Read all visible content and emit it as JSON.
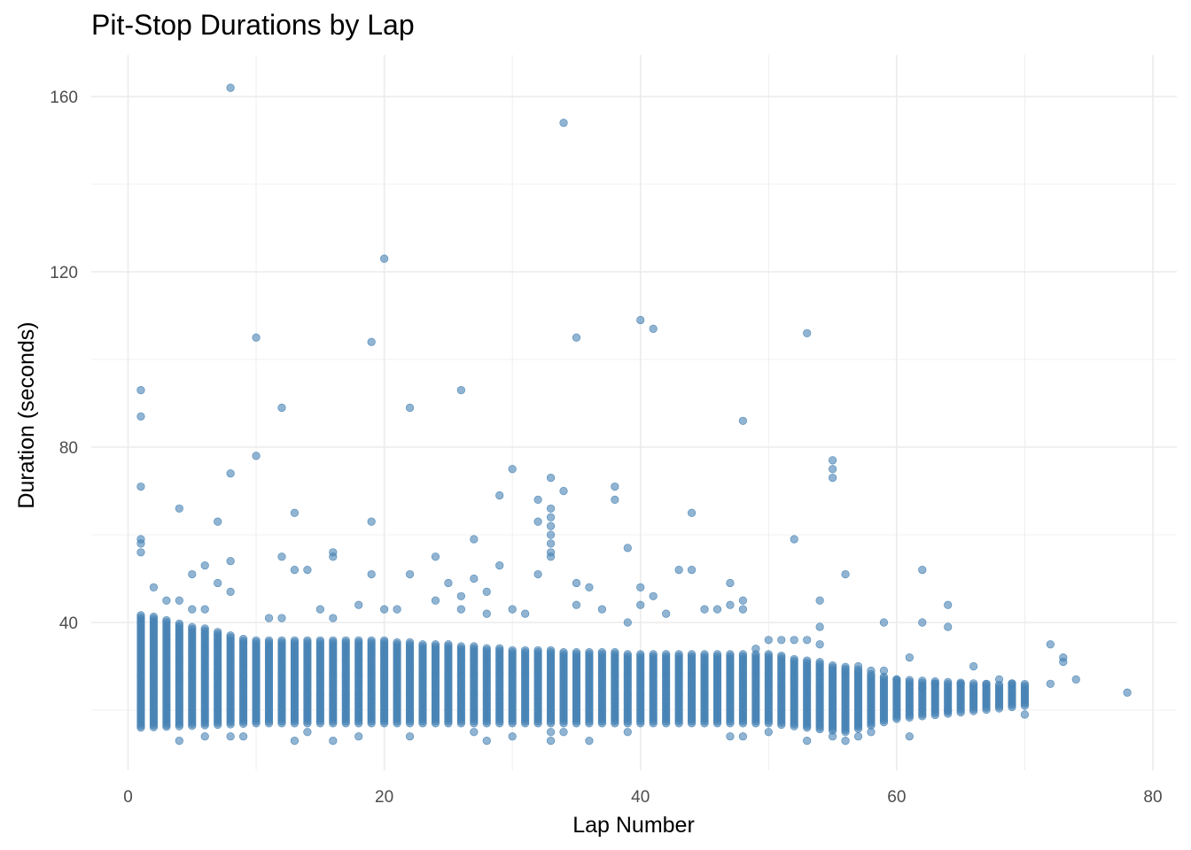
{
  "chart_data": {
    "type": "scatter",
    "title": "Pit-Stop Durations by Lap",
    "xlabel": "Lap Number",
    "ylabel": "Duration (seconds)",
    "xlim": [
      -3,
      81
    ],
    "ylim": [
      6,
      170
    ],
    "x_ticks": [
      0,
      20,
      40,
      60,
      80
    ],
    "y_ticks": [
      40,
      80,
      120,
      160
    ],
    "grid": true,
    "point_color": "#4682B4",
    "point_opacity": 0.6,
    "dense_band": {
      "description_free_range": true,
      "laps": [
        1,
        70
      ],
      "duration_range_by_lap": [
        {
          "lap": 1,
          "min": 16,
          "max": 42
        },
        {
          "lap": 10,
          "min": 17,
          "max": 36
        },
        {
          "lap": 20,
          "min": 17,
          "max": 36
        },
        {
          "lap": 30,
          "min": 17,
          "max": 34
        },
        {
          "lap": 40,
          "min": 17,
          "max": 33
        },
        {
          "lap": 50,
          "min": 17,
          "max": 33
        },
        {
          "lap": 56,
          "min": 15,
          "max": 30
        },
        {
          "lap": 60,
          "min": 18,
          "max": 27
        },
        {
          "lap": 70,
          "min": 21,
          "max": 26
        }
      ]
    },
    "points": [
      {
        "x": 8,
        "y": 162
      },
      {
        "x": 34,
        "y": 154
      },
      {
        "x": 20,
        "y": 123
      },
      {
        "x": 40,
        "y": 109
      },
      {
        "x": 41,
        "y": 107
      },
      {
        "x": 53,
        "y": 106
      },
      {
        "x": 10,
        "y": 105
      },
      {
        "x": 19,
        "y": 104
      },
      {
        "x": 35,
        "y": 105
      },
      {
        "x": 1,
        "y": 93
      },
      {
        "x": 26,
        "y": 93
      },
      {
        "x": 22,
        "y": 89
      },
      {
        "x": 12,
        "y": 89
      },
      {
        "x": 1,
        "y": 87
      },
      {
        "x": 48,
        "y": 86
      },
      {
        "x": 10,
        "y": 78
      },
      {
        "x": 55,
        "y": 77
      },
      {
        "x": 55,
        "y": 75
      },
      {
        "x": 55,
        "y": 73
      },
      {
        "x": 30,
        "y": 75
      },
      {
        "x": 8,
        "y": 74
      },
      {
        "x": 33,
        "y": 73
      },
      {
        "x": 38,
        "y": 71
      },
      {
        "x": 1,
        "y": 71
      },
      {
        "x": 34,
        "y": 70
      },
      {
        "x": 29,
        "y": 69
      },
      {
        "x": 32,
        "y": 68
      },
      {
        "x": 38,
        "y": 68
      },
      {
        "x": 4,
        "y": 66
      },
      {
        "x": 33,
        "y": 66
      },
      {
        "x": 33,
        "y": 64
      },
      {
        "x": 13,
        "y": 65
      },
      {
        "x": 44,
        "y": 65
      },
      {
        "x": 7,
        "y": 63
      },
      {
        "x": 19,
        "y": 63
      },
      {
        "x": 32,
        "y": 63
      },
      {
        "x": 33,
        "y": 62
      },
      {
        "x": 33,
        "y": 60
      },
      {
        "x": 52,
        "y": 59
      },
      {
        "x": 27,
        "y": 59
      },
      {
        "x": 1,
        "y": 59
      },
      {
        "x": 1,
        "y": 58
      },
      {
        "x": 33,
        "y": 58
      },
      {
        "x": 39,
        "y": 57
      },
      {
        "x": 16,
        "y": 56
      },
      {
        "x": 24,
        "y": 55
      },
      {
        "x": 33,
        "y": 56
      },
      {
        "x": 16,
        "y": 55
      },
      {
        "x": 8,
        "y": 54
      },
      {
        "x": 12,
        "y": 55
      },
      {
        "x": 1,
        "y": 56
      },
      {
        "x": 33,
        "y": 55
      },
      {
        "x": 6,
        "y": 53
      },
      {
        "x": 29,
        "y": 53
      },
      {
        "x": 43,
        "y": 52
      },
      {
        "x": 44,
        "y": 52
      },
      {
        "x": 62,
        "y": 52
      },
      {
        "x": 13,
        "y": 52
      },
      {
        "x": 14,
        "y": 52
      },
      {
        "x": 19,
        "y": 51
      },
      {
        "x": 5,
        "y": 51
      },
      {
        "x": 22,
        "y": 51
      },
      {
        "x": 56,
        "y": 51
      },
      {
        "x": 32,
        "y": 51
      },
      {
        "x": 27,
        "y": 50
      },
      {
        "x": 47,
        "y": 49
      },
      {
        "x": 7,
        "y": 49
      },
      {
        "x": 25,
        "y": 49
      },
      {
        "x": 35,
        "y": 49
      },
      {
        "x": 36,
        "y": 48
      },
      {
        "x": 2,
        "y": 48
      },
      {
        "x": 40,
        "y": 48
      },
      {
        "x": 28,
        "y": 47
      },
      {
        "x": 8,
        "y": 47
      },
      {
        "x": 26,
        "y": 46
      },
      {
        "x": 41,
        "y": 46
      },
      {
        "x": 48,
        "y": 45
      },
      {
        "x": 54,
        "y": 45
      },
      {
        "x": 4,
        "y": 45
      },
      {
        "x": 24,
        "y": 45
      },
      {
        "x": 3,
        "y": 45
      },
      {
        "x": 35,
        "y": 44
      },
      {
        "x": 64,
        "y": 44
      },
      {
        "x": 40,
        "y": 44
      },
      {
        "x": 18,
        "y": 44
      },
      {
        "x": 45,
        "y": 43
      },
      {
        "x": 47,
        "y": 44
      },
      {
        "x": 15,
        "y": 43
      },
      {
        "x": 20,
        "y": 43
      },
      {
        "x": 21,
        "y": 43
      },
      {
        "x": 26,
        "y": 43
      },
      {
        "x": 30,
        "y": 43
      },
      {
        "x": 37,
        "y": 43
      },
      {
        "x": 48,
        "y": 43
      },
      {
        "x": 5,
        "y": 43
      },
      {
        "x": 6,
        "y": 43
      },
      {
        "x": 46,
        "y": 43
      },
      {
        "x": 42,
        "y": 42
      },
      {
        "x": 31,
        "y": 42
      },
      {
        "x": 28,
        "y": 42
      },
      {
        "x": 12,
        "y": 41
      },
      {
        "x": 16,
        "y": 41
      },
      {
        "x": 11,
        "y": 41
      },
      {
        "x": 39,
        "y": 40
      },
      {
        "x": 59,
        "y": 40
      },
      {
        "x": 62,
        "y": 40
      },
      {
        "x": 54,
        "y": 39
      },
      {
        "x": 64,
        "y": 39
      },
      {
        "x": 72,
        "y": 35
      },
      {
        "x": 73,
        "y": 32
      },
      {
        "x": 73,
        "y": 31
      },
      {
        "x": 61,
        "y": 32
      },
      {
        "x": 66,
        "y": 30
      },
      {
        "x": 74,
        "y": 27
      },
      {
        "x": 78,
        "y": 24
      },
      {
        "x": 72,
        "y": 26
      },
      {
        "x": 70,
        "y": 19
      },
      {
        "x": 61,
        "y": 14
      },
      {
        "x": 53,
        "y": 13
      },
      {
        "x": 4,
        "y": 13
      },
      {
        "x": 13,
        "y": 13
      },
      {
        "x": 16,
        "y": 13
      },
      {
        "x": 28,
        "y": 13
      },
      {
        "x": 33,
        "y": 13
      },
      {
        "x": 36,
        "y": 13
      },
      {
        "x": 56,
        "y": 13
      },
      {
        "x": 47,
        "y": 14
      },
      {
        "x": 48,
        "y": 14
      },
      {
        "x": 55,
        "y": 14
      },
      {
        "x": 57,
        "y": 14
      },
      {
        "x": 22,
        "y": 14
      },
      {
        "x": 30,
        "y": 14
      },
      {
        "x": 18,
        "y": 14
      },
      {
        "x": 6,
        "y": 14
      },
      {
        "x": 8,
        "y": 14
      },
      {
        "x": 9,
        "y": 14
      },
      {
        "x": 39,
        "y": 15
      },
      {
        "x": 50,
        "y": 15
      },
      {
        "x": 33,
        "y": 15
      },
      {
        "x": 34,
        "y": 15
      },
      {
        "x": 14,
        "y": 15
      },
      {
        "x": 27,
        "y": 15
      },
      {
        "x": 58,
        "y": 15
      },
      {
        "x": 64,
        "y": 20
      },
      {
        "x": 68,
        "y": 27
      },
      {
        "x": 69,
        "y": 26
      },
      {
        "x": 67,
        "y": 26
      },
      {
        "x": 65,
        "y": 26
      },
      {
        "x": 63,
        "y": 26
      },
      {
        "x": 62,
        "y": 25
      },
      {
        "x": 60,
        "y": 27
      },
      {
        "x": 59,
        "y": 29
      },
      {
        "x": 58,
        "y": 29
      },
      {
        "x": 57,
        "y": 30
      },
      {
        "x": 54,
        "y": 35
      },
      {
        "x": 53,
        "y": 36
      },
      {
        "x": 52,
        "y": 36
      },
      {
        "x": 51,
        "y": 36
      },
      {
        "x": 50,
        "y": 36
      },
      {
        "x": 49,
        "y": 34
      }
    ]
  }
}
